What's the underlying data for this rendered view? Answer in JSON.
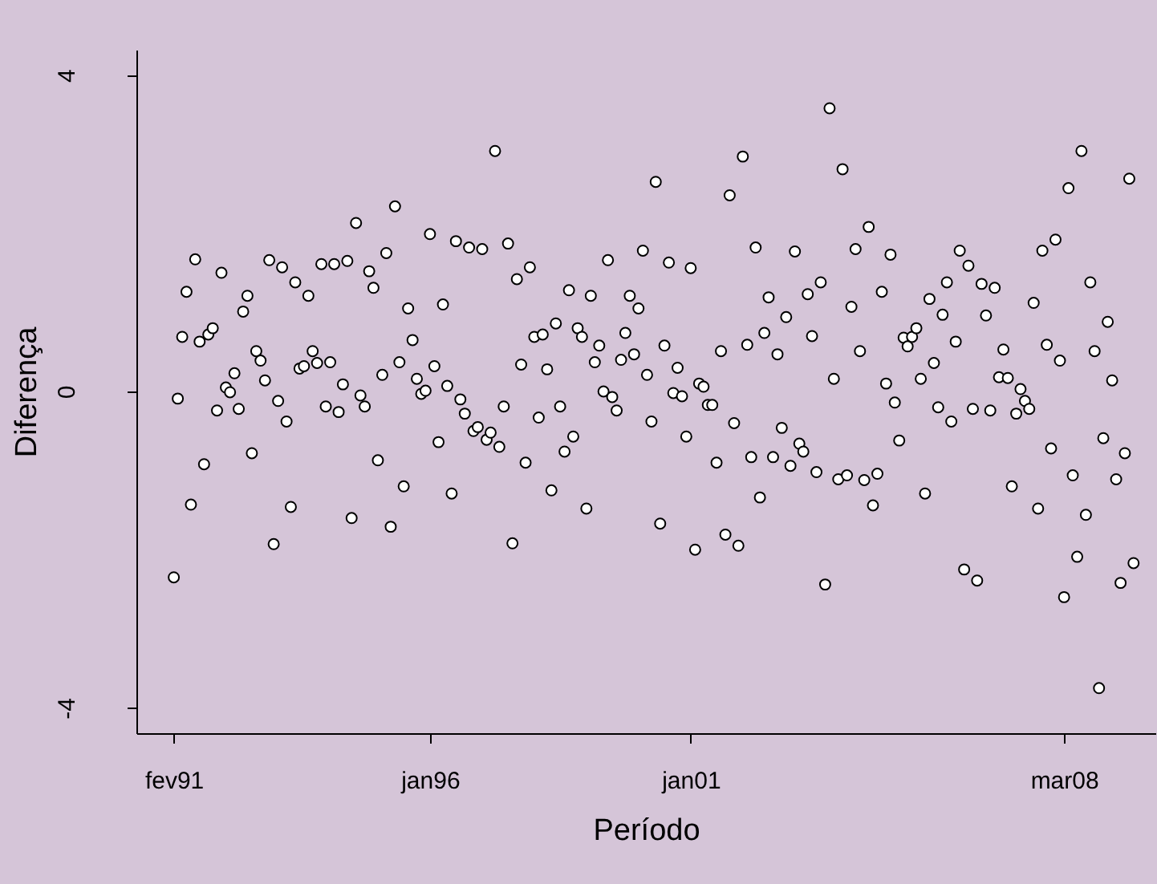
{
  "chart_data": {
    "type": "scatter",
    "xlabel": "Período",
    "ylabel": "Diferença",
    "marker": "circle",
    "xlim": [
      "1990-05-15",
      "2009-12-01"
    ],
    "ylim": [
      -4.32,
      4.32
    ],
    "yticks": [
      -4,
      0,
      4
    ],
    "xticks": [
      {
        "value": "1991-02",
        "label": "fev91"
      },
      {
        "value": "1996-01",
        "label": "jan96"
      },
      {
        "value": "2001-01",
        "label": "jan01"
      },
      {
        "value": "2008-03",
        "label": "mar08"
      }
    ],
    "x": [
      "1991-02",
      "1991-03",
      "1991-04",
      "1991-05",
      "1991-06",
      "1991-07",
      "1991-08",
      "1991-09",
      "1991-10",
      "1991-11",
      "1991-12",
      "1992-01",
      "1992-02",
      "1992-03",
      "1992-04",
      "1992-05",
      "1992-06",
      "1992-07",
      "1992-08",
      "1992-09",
      "1992-10",
      "1992-11",
      "1992-12",
      "1993-01",
      "1993-02",
      "1993-03",
      "1993-04",
      "1993-05",
      "1993-06",
      "1993-07",
      "1993-08",
      "1993-09",
      "1993-10",
      "1993-11",
      "1993-12",
      "1994-01",
      "1994-02",
      "1994-03",
      "1994-04",
      "1994-05",
      "1994-06",
      "1994-07",
      "1994-08",
      "1994-09",
      "1994-10",
      "1994-11",
      "1994-12",
      "1995-01",
      "1995-02",
      "1995-03",
      "1995-04",
      "1995-05",
      "1995-06",
      "1995-07",
      "1995-08",
      "1995-09",
      "1995-10",
      "1995-11",
      "1995-12",
      "1996-01",
      "1996-02",
      "1996-03",
      "1996-04",
      "1996-05",
      "1996-06",
      "1996-07",
      "1996-08",
      "1996-09",
      "1996-10",
      "1996-11",
      "1996-12",
      "1997-01",
      "1997-02",
      "1997-03",
      "1997-04",
      "1997-05",
      "1997-06",
      "1997-07",
      "1997-08",
      "1997-09",
      "1997-10",
      "1997-11",
      "1997-12",
      "1998-01",
      "1998-02",
      "1998-03",
      "1998-04",
      "1998-05",
      "1998-06",
      "1998-07",
      "1998-08",
      "1998-09",
      "1998-10",
      "1998-11",
      "1998-12",
      "1999-01",
      "1999-02",
      "1999-03",
      "1999-04",
      "1999-05",
      "1999-06",
      "1999-07",
      "1999-08",
      "1999-09",
      "1999-10",
      "1999-11",
      "1999-12",
      "2000-01",
      "2000-02",
      "2000-03",
      "2000-04",
      "2000-05",
      "2000-06",
      "2000-07",
      "2000-08",
      "2000-09",
      "2000-10",
      "2000-11",
      "2000-12",
      "2001-01",
      "2001-02",
      "2001-03",
      "2001-04",
      "2001-05",
      "2001-06",
      "2001-07",
      "2001-08",
      "2001-09",
      "2001-10",
      "2001-11",
      "2001-12",
      "2002-01",
      "2002-02",
      "2002-03",
      "2002-04",
      "2002-05",
      "2002-06",
      "2002-07",
      "2002-08",
      "2002-09",
      "2002-10",
      "2002-11",
      "2002-12",
      "2003-01",
      "2003-02",
      "2003-03",
      "2003-04",
      "2003-05",
      "2003-06",
      "2003-07",
      "2003-08",
      "2003-09",
      "2003-10",
      "2003-11",
      "2003-12",
      "2004-01",
      "2004-02",
      "2004-03",
      "2004-04",
      "2004-05",
      "2004-06",
      "2004-07",
      "2004-08",
      "2004-09",
      "2004-10",
      "2004-11",
      "2004-12",
      "2005-01",
      "2005-02",
      "2005-03",
      "2005-04",
      "2005-05",
      "2005-06",
      "2005-07",
      "2005-08",
      "2005-09",
      "2005-10",
      "2005-11",
      "2005-12",
      "2006-01",
      "2006-02",
      "2006-03",
      "2006-04",
      "2006-05",
      "2006-06",
      "2006-07",
      "2006-08",
      "2006-09",
      "2006-10",
      "2006-11",
      "2006-12",
      "2007-01",
      "2007-02",
      "2007-03",
      "2007-04",
      "2007-05",
      "2007-06",
      "2007-07",
      "2007-08",
      "2007-09",
      "2007-10",
      "2007-11",
      "2007-12",
      "2008-01",
      "2008-02",
      "2008-03",
      "2008-04",
      "2008-05",
      "2008-06",
      "2008-07",
      "2008-08",
      "2008-09",
      "2008-10",
      "2008-11",
      "2008-12",
      "2009-01",
      "2009-02",
      "2009-03",
      "2009-04",
      "2009-05",
      "2009-06",
      "2009-07"
    ],
    "series": [
      {
        "color": "#ffffff",
        "values": [
          -2.35,
          -0.09,
          0.69,
          1.26,
          -1.43,
          1.67,
          0.63,
          -0.92,
          0.72,
          0.8,
          -0.24,
          1.5,
          0.05,
          -0.01,
          0.23,
          -0.22,
          1.01,
          1.21,
          -0.78,
          0.51,
          0.39,
          0.14,
          1.66,
          -1.93,
          -0.12,
          1.57,
          -0.38,
          -1.46,
          1.38,
          0.29,
          0.32,
          1.21,
          0.51,
          0.36,
          1.61,
          -0.19,
          0.37,
          1.61,
          -0.26,
          0.09,
          1.65,
          -1.6,
          2.13,
          -0.05,
          -0.19,
          1.52,
          1.31,
          -0.87,
          0.21,
          1.75,
          -1.71,
          2.34,
          0.37,
          -1.2,
          1.05,
          0.65,
          0.16,
          -0.03,
          0.01,
          1.99,
          0.32,
          -0.64,
          1.1,
          0.07,
          -1.29,
          1.9,
          -0.1,
          -0.28,
          1.82,
          -0.5,
          -0.45,
          1.8,
          -0.61,
          -0.52,
          3.04,
          -0.7,
          -0.19,
          1.87,
          -1.92,
          1.42,
          0.34,
          -0.9,
          1.57,
          0.69,
          -0.33,
          0.72,
          0.28,
          -1.25,
          0.86,
          -0.19,
          -0.76,
          1.28,
          -0.57,
          0.8,
          0.69,
          -1.48,
          1.21,
          0.37,
          0.58,
          0.0,
          1.66,
          -0.07,
          -0.24,
          0.4,
          0.74,
          1.21,
          0.47,
          1.05,
          1.78,
          0.21,
          -0.38,
          2.65,
          -1.67,
          0.58,
          1.63,
          -0.02,
          0.3,
          -0.06,
          -0.57,
          1.56,
          -2.0,
          0.1,
          0.06,
          -0.17,
          -0.17,
          -0.9,
          0.51,
          -1.81,
          2.48,
          -0.4,
          -1.95,
          2.97,
          0.59,
          -0.83,
          1.82,
          -1.34,
          0.74,
          1.19,
          -0.83,
          0.47,
          -0.46,
          0.94,
          -0.94,
          1.77,
          -0.66,
          -0.76,
          1.23,
          0.7,
          -1.02,
          1.38,
          -2.44,
          3.58,
          0.16,
          -1.11,
          2.81,
          -1.06,
          1.07,
          1.8,
          0.51,
          -1.12,
          2.08,
          -1.44,
          -1.04,
          1.26,
          0.1,
          1.73,
          -0.14,
          -0.62,
          0.68,
          0.57,
          0.69,
          0.8,
          0.16,
          -1.29,
          1.17,
          0.36,
          -0.2,
          0.97,
          1.38,
          -0.38,
          0.63,
          1.78,
          -2.25,
          1.59,
          -0.22,
          -2.39,
          1.36,
          0.96,
          -0.24,
          1.31,
          0.18,
          0.53,
          0.17,
          -1.2,
          -0.28,
          0.03,
          -0.12,
          -0.22,
          1.12,
          -1.48,
          1.78,
          0.59,
          -0.72,
          1.92,
          0.39,
          -2.6,
          2.57,
          -1.06,
          -2.09,
          3.04,
          -1.56,
          1.38,
          0.51,
          -3.75,
          -0.59,
          0.88,
          0.14,
          -1.11,
          -2.42,
          -0.78,
          2.69,
          -2.17
        ]
      }
    ]
  }
}
